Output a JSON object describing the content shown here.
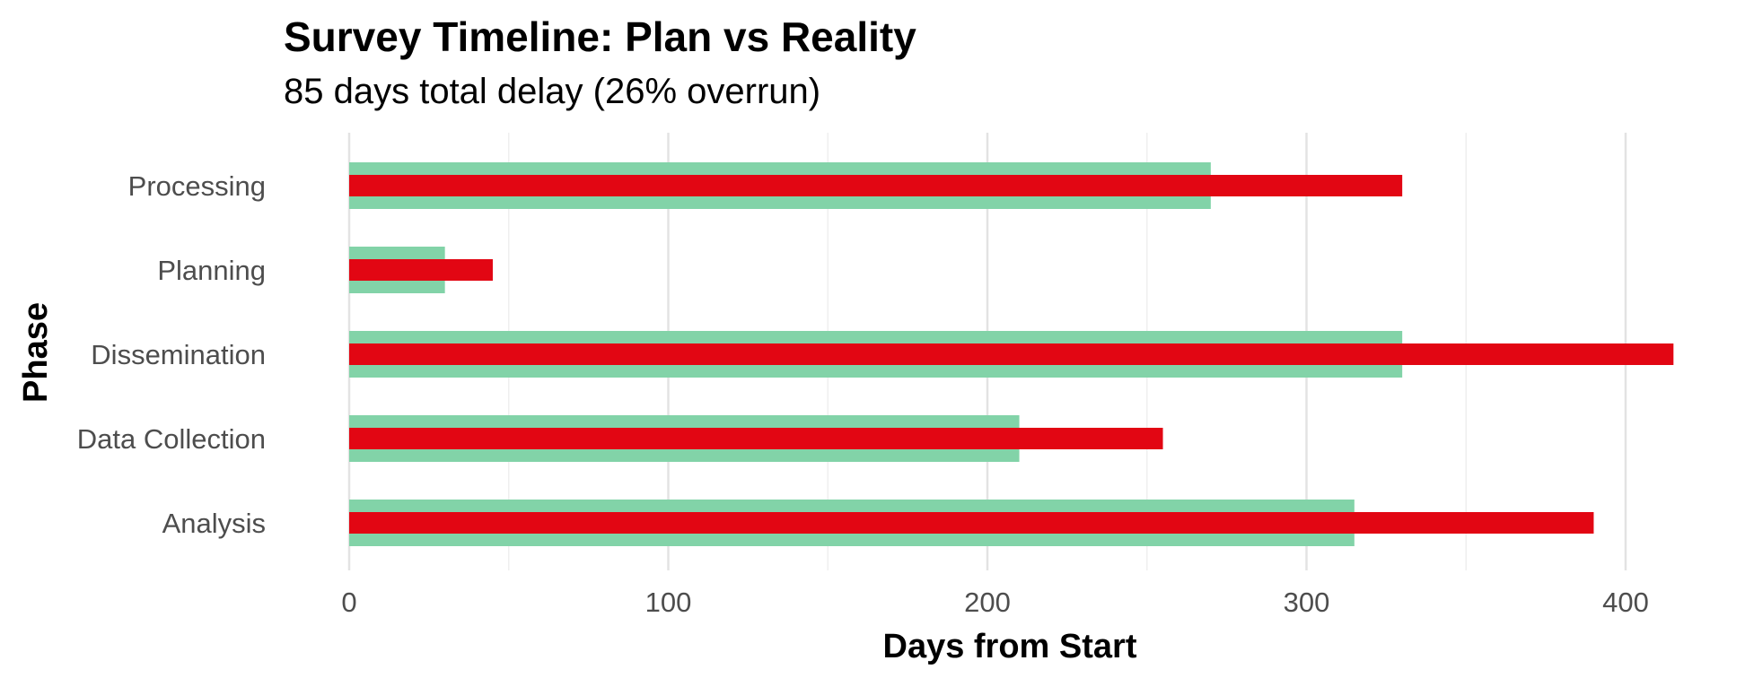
{
  "chart_data": {
    "type": "bar",
    "orientation": "horizontal",
    "title": "Survey Timeline: Plan vs Reality",
    "subtitle": "85 days total delay (26% overrun)",
    "xlabel": "Days from Start",
    "ylabel": "Phase",
    "categories": [
      "Processing",
      "Planning",
      "Dissemination",
      "Data Collection",
      "Analysis"
    ],
    "series": [
      {
        "color": "#82d3a8",
        "values": [
          270,
          30,
          330,
          210,
          315
        ]
      },
      {
        "color": "#e20613",
        "values": [
          330,
          45,
          415,
          255,
          390
        ]
      }
    ],
    "xlim": [
      0,
      415
    ],
    "xticks": [
      0,
      100,
      200,
      300,
      400
    ],
    "grid": true,
    "legend": "none"
  }
}
